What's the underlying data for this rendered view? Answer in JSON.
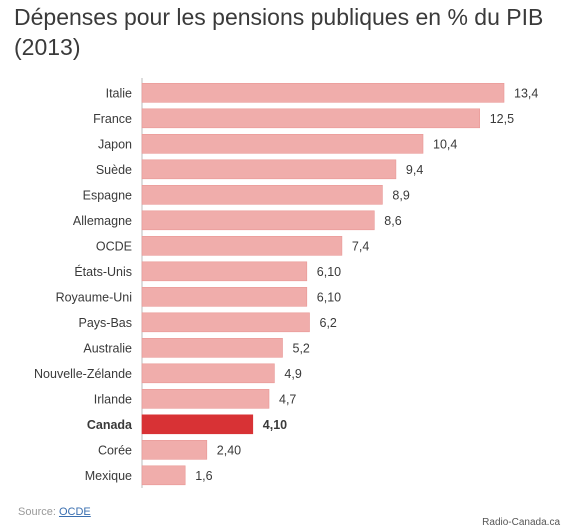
{
  "title_line1": "Dépenses pour les pensions publiques en % du PIB",
  "title_line2": "(2013)",
  "source_label": "Source:",
  "source_link": "OCDE",
  "credit": "Radio-Canada.ca",
  "colors": {
    "bar": "#f0adab",
    "bar_highlight": "#d83235",
    "bar_stroke": "#e89896"
  },
  "chart_data": {
    "type": "bar",
    "orientation": "horizontal",
    "categories": [
      "Italie",
      "France",
      "Japon",
      "Suède",
      "Espagne",
      "Allemagne",
      "OCDE",
      "États-Unis",
      "Royaume-Uni",
      "Pays-Bas",
      "Australie",
      "Nouvelle-Zélande",
      "Irlande",
      "Canada",
      "Corée",
      "Mexique"
    ],
    "values": [
      13.4,
      12.5,
      10.4,
      9.4,
      8.9,
      8.6,
      7.4,
      6.1,
      6.1,
      6.2,
      5.2,
      4.9,
      4.7,
      4.1,
      2.4,
      1.6
    ],
    "value_labels": [
      "13,4",
      "12,5",
      "10,4",
      "9,4",
      "8,9",
      "8,6",
      "7,4",
      "6,10",
      "6,10",
      "6,2",
      "5,2",
      "4,9",
      "4,7",
      "4,10",
      "2,40",
      "1,6"
    ],
    "highlight": "Canada",
    "title": "Dépenses pour les pensions publiques en % du PIB (2013)",
    "xlabel": "",
    "ylabel": "",
    "xlim": [
      0,
      13.4
    ],
    "grid": false,
    "legend": "none"
  }
}
